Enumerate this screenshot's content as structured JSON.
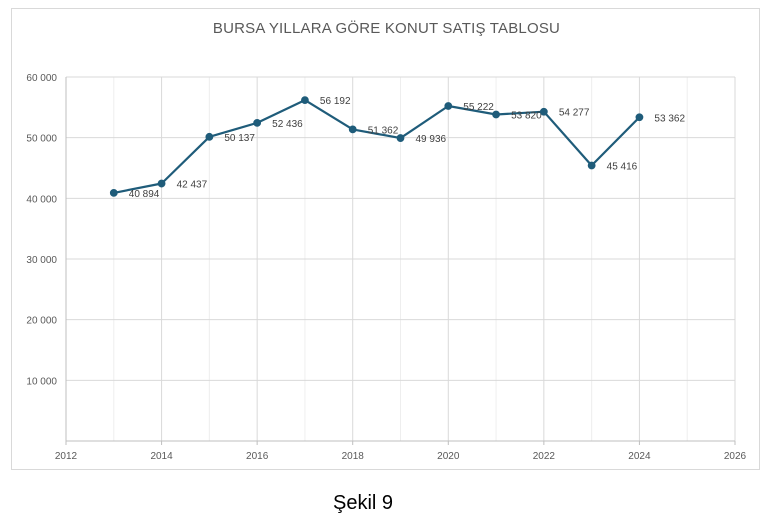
{
  "chart_data": {
    "type": "line",
    "title": "BURSA YILLARA GÖRE KONUT SATIŞ TABLOSU",
    "xlabel": "",
    "ylabel": "",
    "xlim": [
      2012,
      2026
    ],
    "ylim": [
      0,
      60000
    ],
    "x_ticks": [
      "2012",
      "2014",
      "2016",
      "2018",
      "2020",
      "2022",
      "2024",
      "2026"
    ],
    "y_ticks": [
      "10 000",
      "20 000",
      "30 000",
      "40 000",
      "50 000",
      "60 000"
    ],
    "grid": true,
    "series": [
      {
        "color": "#1f5c7a",
        "x": [
          2013,
          2014,
          2015,
          2016,
          2017,
          2018,
          2019,
          2020,
          2021,
          2022,
          2023,
          2024
        ],
        "values": [
          40894,
          42437,
          50137,
          52436,
          56192,
          51362,
          49936,
          55222,
          53820,
          54277,
          45416,
          53362
        ],
        "labels": [
          "40 894",
          "42 437",
          "50 137",
          "52 436",
          "56 192",
          "51 362",
          "49 936",
          "55 222",
          "53 820",
          "54 277",
          "45 416",
          "53 362"
        ]
      }
    ]
  },
  "caption": "Şekil 9"
}
